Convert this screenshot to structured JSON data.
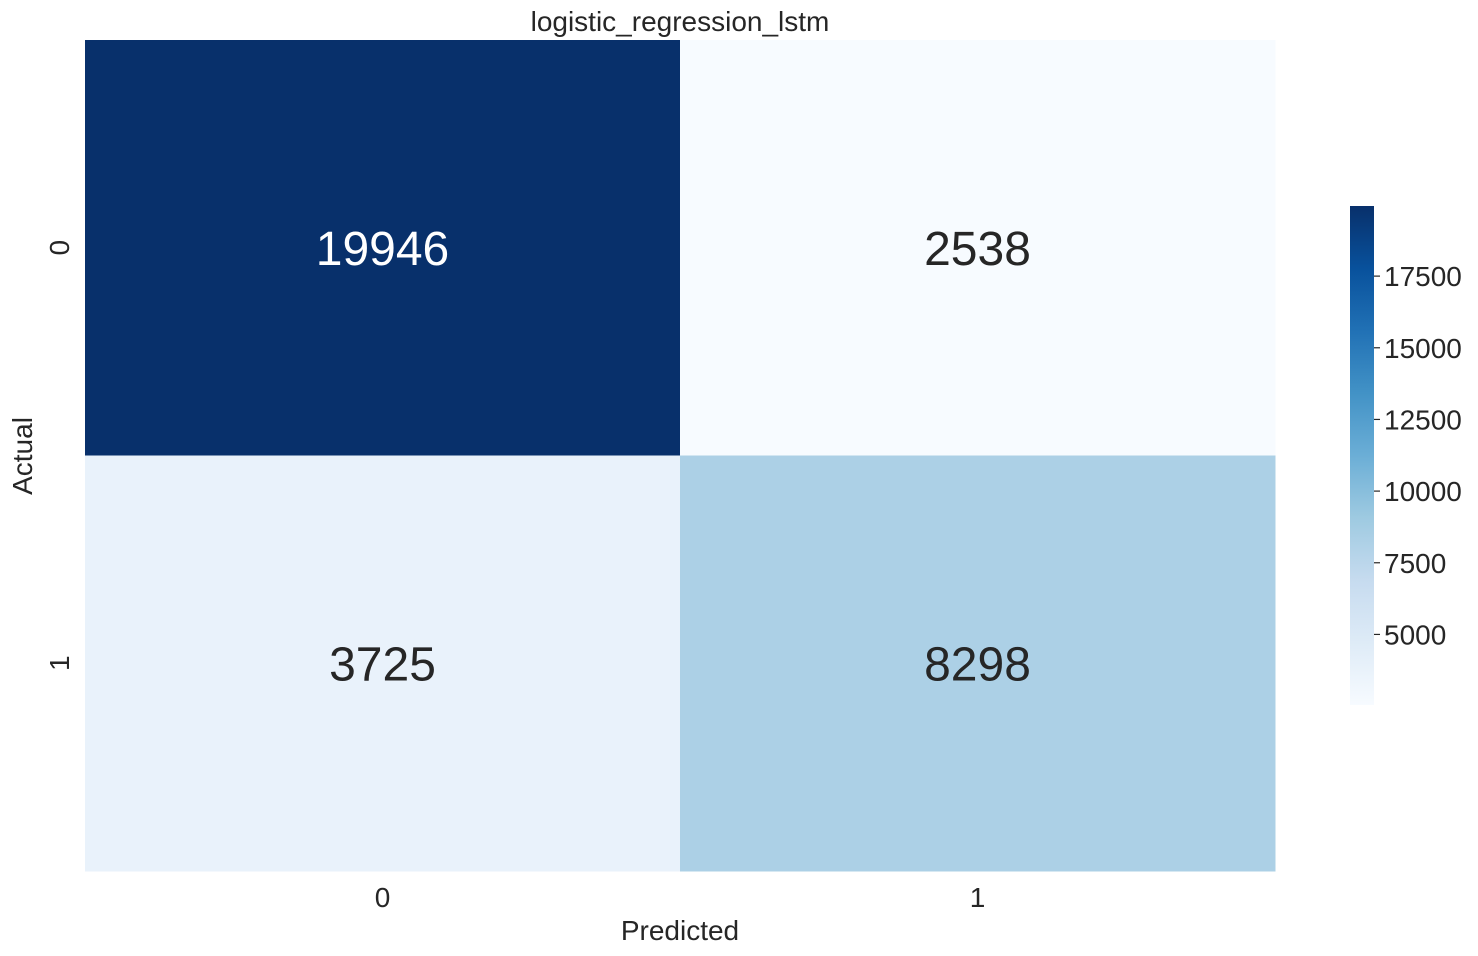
{
  "chart_data": {
    "type": "heatmap",
    "title": "logistic_regression_lstm",
    "xlabel": "Predicted",
    "ylabel": "Actual",
    "x_categories": [
      "0",
      "1"
    ],
    "y_categories": [
      "0",
      "1"
    ],
    "values": [
      [
        19946,
        2538
      ],
      [
        3725,
        8298
      ]
    ],
    "colormap": "Blues",
    "colorbar": {
      "range": [
        2538,
        19946
      ],
      "ticks": [
        5000,
        7500,
        10000,
        12500,
        15000,
        17500
      ],
      "tick_labels": [
        "5000",
        "7500",
        "10000",
        "12500",
        "15000",
        "17500"
      ]
    },
    "grid": false
  }
}
